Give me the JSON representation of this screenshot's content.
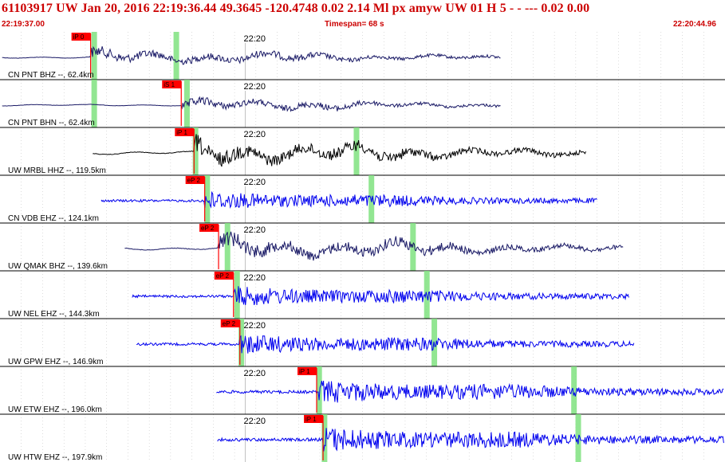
{
  "header": {
    "title": "61103917 UW Jan 20, 2016 22:19:36.44    49.3645 -120.4748   0.02 2.14 Ml px     amyw      UW 01 H     5   -   -  ---   0.02 0.00",
    "start_time": "22:19:37.00",
    "timespan": "Timespan=  68 s",
    "end_time": "22:20:44.96"
  },
  "colors": {
    "header_text": "#cc0000",
    "trace_dark": "#1a1a66",
    "trace_black": "#000000",
    "trace_blue": "#0000ee",
    "pick_flag": "#ff0000",
    "marker_green": "#7fe27f",
    "grid": "#bbbbbb"
  },
  "chart_data": {
    "type": "seismogram",
    "time_range": [
      "22:19:37.00",
      "22:20:44.96"
    ],
    "timespan_s": 68,
    "minute_mark": "22:20",
    "traces": [
      {
        "label": "CN PNT BHZ --, 62.4km",
        "pick": "iP 0",
        "color": "dark",
        "start_s": 0.2,
        "end_s": 47,
        "onset_s": 8.5,
        "amp": 0.45,
        "green_s": [
          8.8,
          16.5
        ]
      },
      {
        "label": "CN PNT BHN --, 62.4km",
        "pick": "iS 1",
        "color": "dark",
        "start_s": 0.2,
        "end_s": 47,
        "onset_s": 17.0,
        "amp": 0.4,
        "green_s": [
          8.8,
          17.5
        ]
      },
      {
        "label": "UW MRBL HHZ --, 119.5km",
        "pick": "iP 1",
        "color": "black",
        "start_s": 8.7,
        "end_s": 55,
        "onset_s": 18.2,
        "amp": 0.75,
        "green_s": [
          18.3,
          33.4
        ]
      },
      {
        "label": "CN VDB EHZ --, 124.1km",
        "pick": "eP 2",
        "color": "blue",
        "start_s": 9.5,
        "end_s": 56,
        "onset_s": 19.2,
        "amp": 0.6,
        "green_s": [
          19.4,
          34.8
        ]
      },
      {
        "label": "UW QMAK BHZ --, 139.6km",
        "pick": "eP 2",
        "color": "dark",
        "start_s": 11.7,
        "end_s": 58.5,
        "onset_s": 20.5,
        "amp": 0.7,
        "green_s": [
          21.3,
          38.7
        ]
      },
      {
        "label": "UW NEL EHZ --, 144.3km",
        "pick": "eP 2",
        "color": "blue",
        "start_s": 12.4,
        "end_s": 59,
        "onset_s": 21.9,
        "amp": 0.65,
        "green_s": [
          22.2,
          40.0
        ]
      },
      {
        "label": "UW GPW EHZ --, 146.9km",
        "pick": "eP 2",
        "color": "blue",
        "start_s": 12.8,
        "end_s": 59.5,
        "onset_s": 22.5,
        "amp": 0.65,
        "green_s": [
          22.6,
          40.7
        ]
      },
      {
        "label": "UW ETW EHZ --, 196.0km",
        "pick": "iP 1",
        "color": "blue",
        "start_s": 20.3,
        "end_s": 67.9,
        "onset_s": 29.7,
        "amp": 0.75,
        "green_s": [
          29.9,
          53.8
        ]
      },
      {
        "label": "UW HTW EHZ --, 197.9km",
        "pick": "iP 1",
        "color": "blue",
        "start_s": 20.4,
        "end_s": 67.9,
        "onset_s": 30.3,
        "amp": 0.8,
        "green_s": [
          30.4,
          54.2
        ]
      }
    ]
  }
}
